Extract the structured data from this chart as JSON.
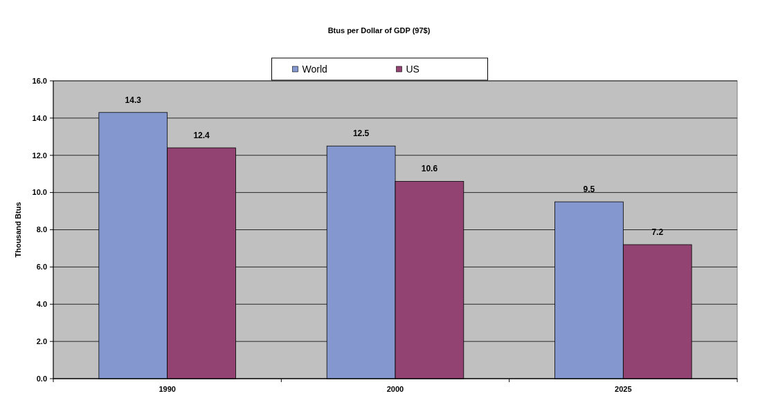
{
  "chart_data": {
    "type": "bar",
    "title": "Btus per Dollar of GDP (97$)",
    "ylabel": "Thousand Btus",
    "categories": [
      "1990",
      "2000",
      "2025"
    ],
    "series": [
      {
        "name": "World",
        "color": "#8497cf",
        "values": [
          14.3,
          12.5,
          9.5
        ]
      },
      {
        "name": "US",
        "color": "#934372",
        "values": [
          12.4,
          10.6,
          7.2
        ]
      }
    ],
    "ylim": [
      0,
      16
    ],
    "yticks": [
      {
        "value": 0,
        "label": "0.0"
      },
      {
        "value": 2,
        "label": "2.0"
      },
      {
        "value": 4,
        "label": "4.0"
      },
      {
        "value": 6,
        "label": "6.0"
      },
      {
        "value": 8,
        "label": "8.0"
      },
      {
        "value": 10,
        "label": "10.0"
      },
      {
        "value": 12,
        "label": "12.0"
      },
      {
        "value": 14,
        "label": "14.0"
      },
      {
        "value": 16,
        "label": "16.0"
      }
    ],
    "grid": "y",
    "legend": "top",
    "data_labels": true
  }
}
